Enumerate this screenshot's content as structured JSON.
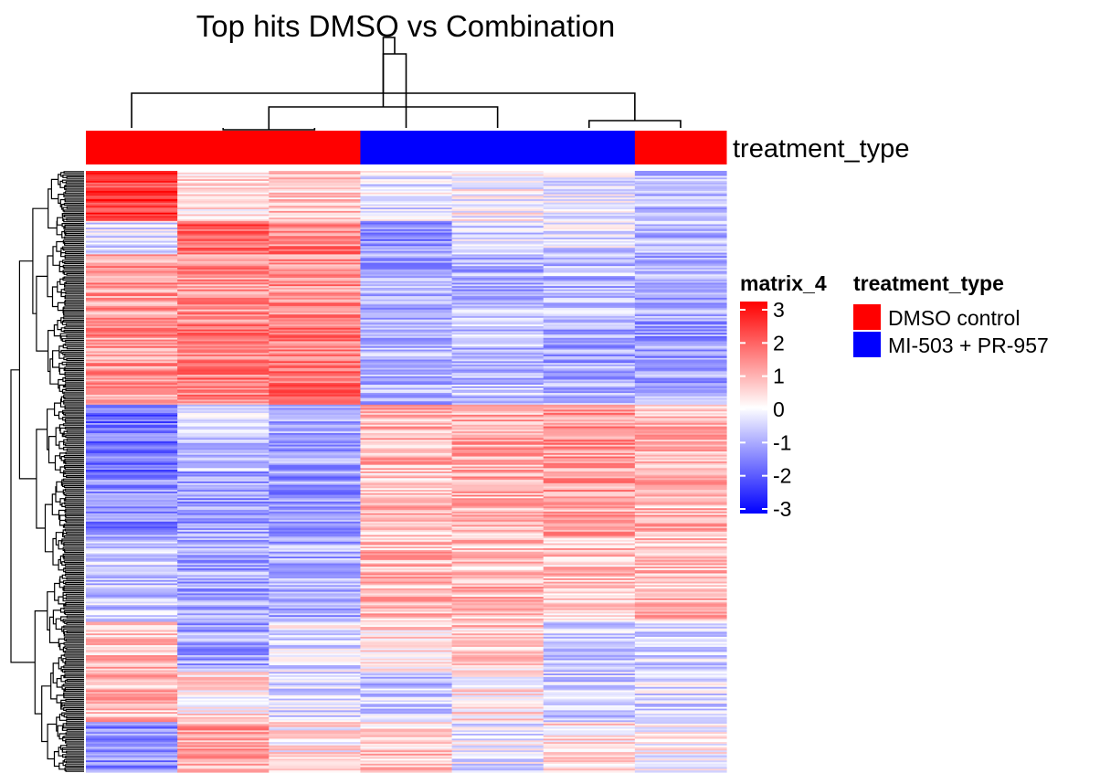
{
  "chart_data": {
    "type": "heatmap",
    "title": "Top hits DMSO vs Combination",
    "n_columns": 7,
    "column_groups": [
      "DMSO control",
      "DMSO control",
      "DMSO control",
      "MI-503 + PR-957",
      "MI-503 + PR-957",
      "MI-503 + PR-957",
      "DMSO control"
    ],
    "column_annotation_name": "treatment_type",
    "row_dendrogram": true,
    "column_dendrogram": true,
    "column_dendrogram_merges": [
      [
        1,
        2
      ],
      [
        5,
        6
      ],
      [
        4,
        7
      ],
      [
        0,
        8
      ],
      [
        3,
        9
      ],
      [
        10,
        11
      ]
    ],
    "row_blocks": [
      {
        "rows": 30,
        "values": [
          2.3,
          0.3,
          0.7,
          -0.3,
          0.0,
          -0.3,
          -0.8
        ]
      },
      {
        "rows": 20,
        "values": [
          -0.3,
          1.8,
          1.4,
          -1.3,
          -0.5,
          -0.4,
          -0.9
        ]
      },
      {
        "rows": 40,
        "values": [
          1.2,
          1.3,
          1.3,
          -1.0,
          -0.9,
          -0.8,
          -1.0
        ]
      },
      {
        "rows": 50,
        "values": [
          1.2,
          1.6,
          1.6,
          -0.8,
          -0.7,
          -1.0,
          -1.1
        ]
      },
      {
        "rows": 40,
        "values": [
          -1.7,
          -0.5,
          -1.0,
          0.9,
          1.0,
          1.2,
          0.8
        ]
      },
      {
        "rows": 40,
        "values": [
          -1.3,
          -1.1,
          -1.2,
          0.7,
          0.9,
          1.1,
          0.8
        ]
      },
      {
        "rows": 50,
        "values": [
          -0.6,
          -1.0,
          -1.0,
          0.8,
          0.8,
          0.7,
          0.8
        ]
      },
      {
        "rows": 30,
        "values": [
          0.7,
          -1.1,
          -0.3,
          0.4,
          0.6,
          -0.5,
          -0.5
        ]
      },
      {
        "rows": 30,
        "values": [
          0.8,
          0.3,
          -0.5,
          -0.6,
          0.3,
          -0.6,
          -0.4
        ]
      },
      {
        "rows": 30,
        "values": [
          -1.4,
          1.0,
          0.2,
          0.6,
          -0.3,
          0.3,
          0.0
        ]
      }
    ],
    "color_scale": {
      "min": -3,
      "max": 3,
      "low": "#0000ff",
      "mid": "#ffffff",
      "high": "#ff0000"
    },
    "legend": {
      "heatmap_title": "matrix_4",
      "ticks": [
        "3",
        "2",
        "1",
        "0",
        "-1",
        "-2",
        "-3"
      ],
      "annotation_title": "treatment_type",
      "entries": [
        {
          "label": "DMSO control",
          "color": "#ff0000"
        },
        {
          "label": "MI-503 + PR-957",
          "color": "#0000ff"
        }
      ]
    }
  }
}
